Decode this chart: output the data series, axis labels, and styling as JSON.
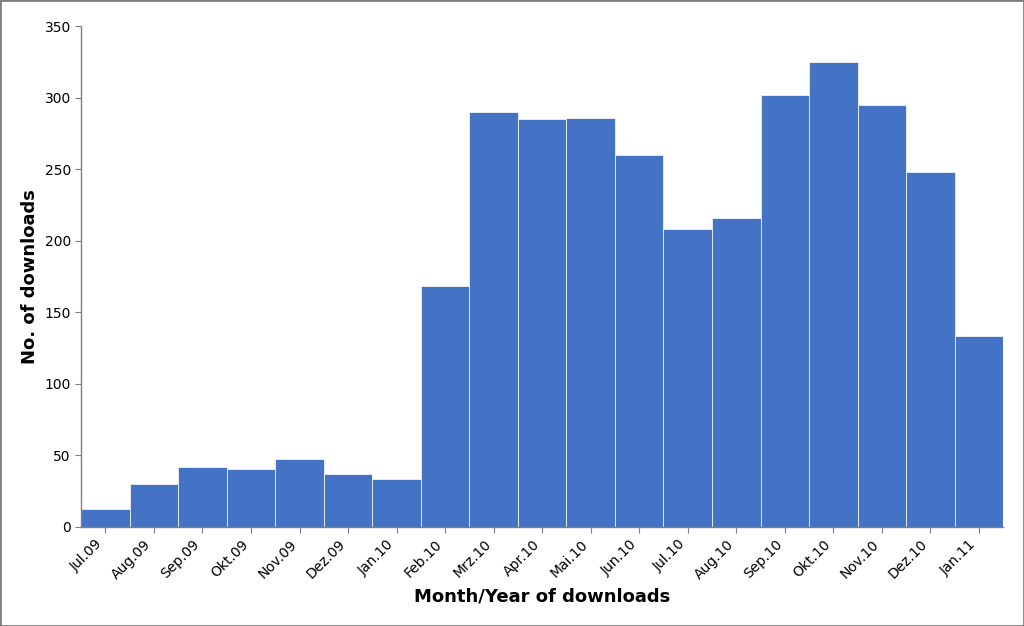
{
  "categories": [
    "Jul.09",
    "Aug.09",
    "Sep.09",
    "Okt.09",
    "Nov.09",
    "Dez.09",
    "Jan.10",
    "Feb.10",
    "Mrz.10",
    "Apr.10",
    "Mai.10",
    "Jun.10",
    "Jul.10",
    "Aug.10",
    "Sep.10",
    "Okt.10",
    "Nov.10",
    "Dez.10",
    "Jan.11"
  ],
  "values": [
    12,
    30,
    42,
    40,
    47,
    37,
    33,
    168,
    290,
    285,
    286,
    260,
    208,
    216,
    302,
    325,
    295,
    248,
    133
  ],
  "bar_color": "#4472C4",
  "bar_edge_color": "#ffffff",
  "xlabel": "Month/Year of downloads",
  "ylabel": "No. of downloads",
  "ylim": [
    0,
    350
  ],
  "yticks": [
    0,
    50,
    100,
    150,
    200,
    250,
    300,
    350
  ],
  "xlabel_fontsize": 13,
  "ylabel_fontsize": 13,
  "tick_fontsize": 10,
  "background_color": "#ffffff",
  "spine_color": "#7f7f7f",
  "outer_border_color": "#7f7f7f"
}
